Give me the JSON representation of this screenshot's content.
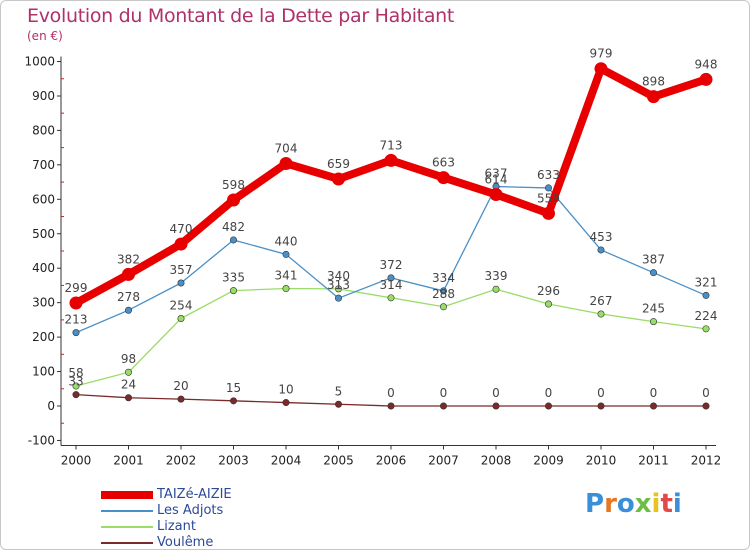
{
  "header": {
    "title": "Evolution du Montant de la Dette par Habitant",
    "subtitle": "(en €)"
  },
  "logo": {
    "text": "Proxiti",
    "colors": [
      "#3a8fd8",
      "#e87722",
      "#3a8fd8",
      "#6cbe45",
      "#e8c21e",
      "#e24a4a",
      "#3a8fd8"
    ]
  },
  "chart_data": {
    "type": "line",
    "x": [
      "2000",
      "2001",
      "2002",
      "2003",
      "2004",
      "2005",
      "2006",
      "2007",
      "2008",
      "2009",
      "2010",
      "2011",
      "2012"
    ],
    "ylim": [
      -100,
      1000
    ],
    "yticks": [
      -100,
      0,
      100,
      200,
      300,
      400,
      500,
      600,
      700,
      800,
      900,
      1000
    ],
    "grid": false,
    "legend_position": "bottom-left",
    "series": [
      {
        "name": "TAIZé-AIZIE",
        "color": "#e80000",
        "width": "thick",
        "values": [
          299,
          382,
          470,
          598,
          704,
          659,
          713,
          663,
          614,
          559,
          979,
          898,
          948
        ],
        "labels": [
          "299",
          "382",
          "470",
          "598",
          "704",
          "659",
          "713",
          "663",
          "614",
          "559",
          "979",
          "898",
          "948"
        ]
      },
      {
        "name": "Les Adjots",
        "color": "#4a90c8",
        "width": "thin",
        "values": [
          213,
          278,
          357,
          482,
          440,
          313,
          372,
          334,
          637,
          633,
          453,
          387,
          321
        ],
        "labels": [
          "213",
          "278",
          "357",
          "482",
          "440",
          "313",
          "372",
          "334",
          "637",
          "633",
          "453",
          "387",
          "321"
        ]
      },
      {
        "name": "Lizant",
        "color": "#99dd66",
        "width": "thin",
        "values": [
          58,
          98,
          254,
          335,
          341,
          340,
          314,
          288,
          339,
          296,
          267,
          245,
          224
        ],
        "labels": [
          "58",
          "98",
          "254",
          "335",
          "341",
          "340",
          "314",
          "288",
          "339",
          "296",
          "267",
          "245",
          "224"
        ]
      },
      {
        "name": "Voulême",
        "color": "#7a2a2a",
        "width": "thin",
        "values": [
          33,
          24,
          20,
          15,
          10,
          5,
          0,
          0,
          0,
          0,
          0,
          0,
          0
        ],
        "labels": [
          "33",
          "24",
          "20",
          "15",
          "10",
          "5",
          "0",
          "0",
          "0",
          "0",
          "0",
          "0",
          "0"
        ]
      }
    ]
  }
}
